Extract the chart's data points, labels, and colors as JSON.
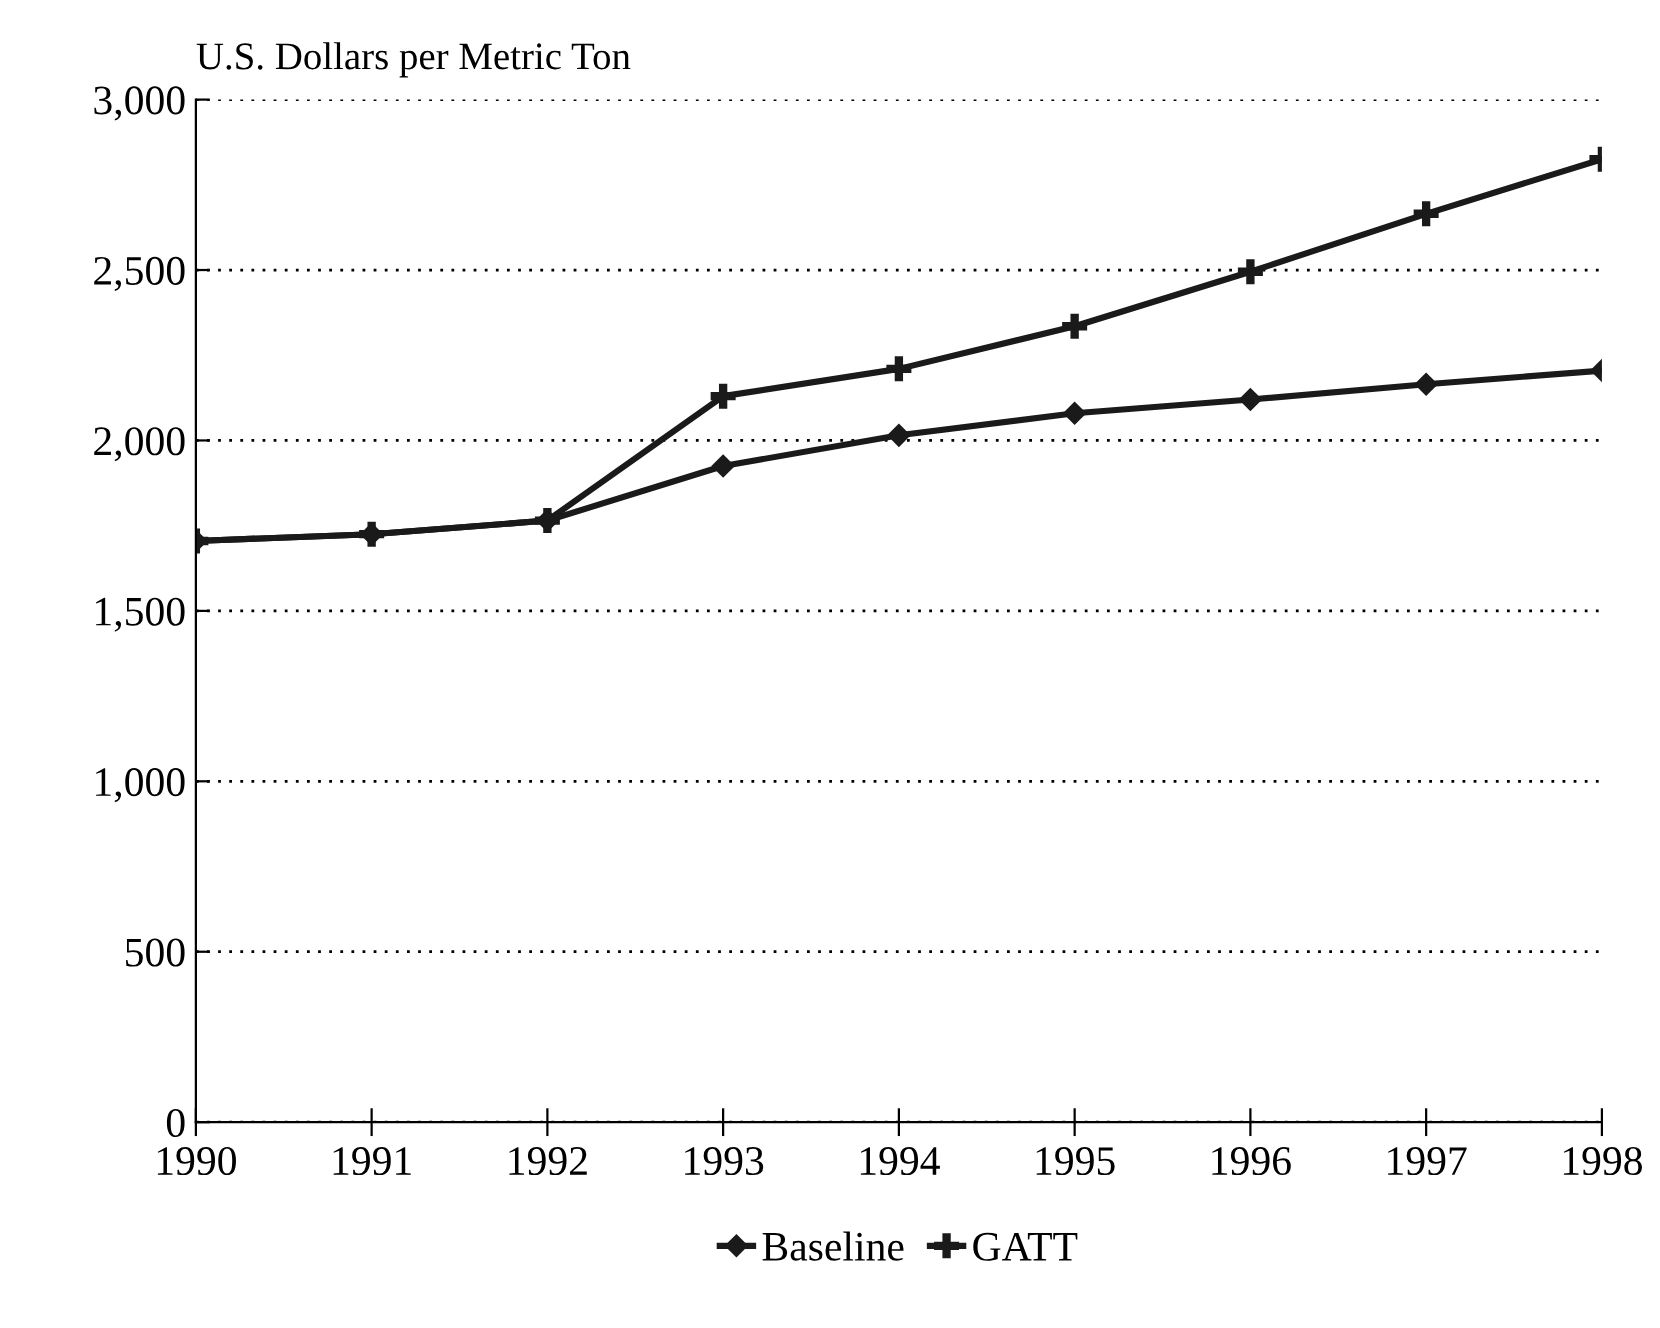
{
  "chart_data": {
    "type": "line",
    "ylabel": "U.S. Dollars per Metric Ton",
    "x": [
      1990,
      1991,
      1992,
      1993,
      1994,
      1995,
      1996,
      1997,
      1998
    ],
    "series": [
      {
        "name": "Baseline",
        "color": "#1a1a1a",
        "marker": "diamond",
        "values": [
          1705,
          1725,
          1765,
          1925,
          2015,
          2080,
          2120,
          2165,
          2205
        ]
      },
      {
        "name": "GATT",
        "color": "#1a1a1a",
        "marker": "cross",
        "values": [
          1705,
          1725,
          1765,
          2130,
          2210,
          2335,
          2495,
          2665,
          2825
        ]
      }
    ],
    "xlim": [
      1990,
      1998
    ],
    "xticks": [
      1990,
      1991,
      1992,
      1993,
      1994,
      1995,
      1996,
      1997,
      1998
    ],
    "ylim": [
      0,
      3000
    ],
    "yticks": [
      0,
      {
        "value": 500,
        "label": "500"
      },
      {
        "value": 1000,
        "label": "1,000"
      },
      {
        "value": 1500,
        "label": "1,500"
      },
      {
        "value": 2000,
        "label": "2,000"
      },
      {
        "value": 2500,
        "label": "2,500"
      },
      {
        "value": 3000,
        "label": "3,000"
      }
    ],
    "grid": "y",
    "legend": "bottom",
    "line_style": "solid"
  }
}
